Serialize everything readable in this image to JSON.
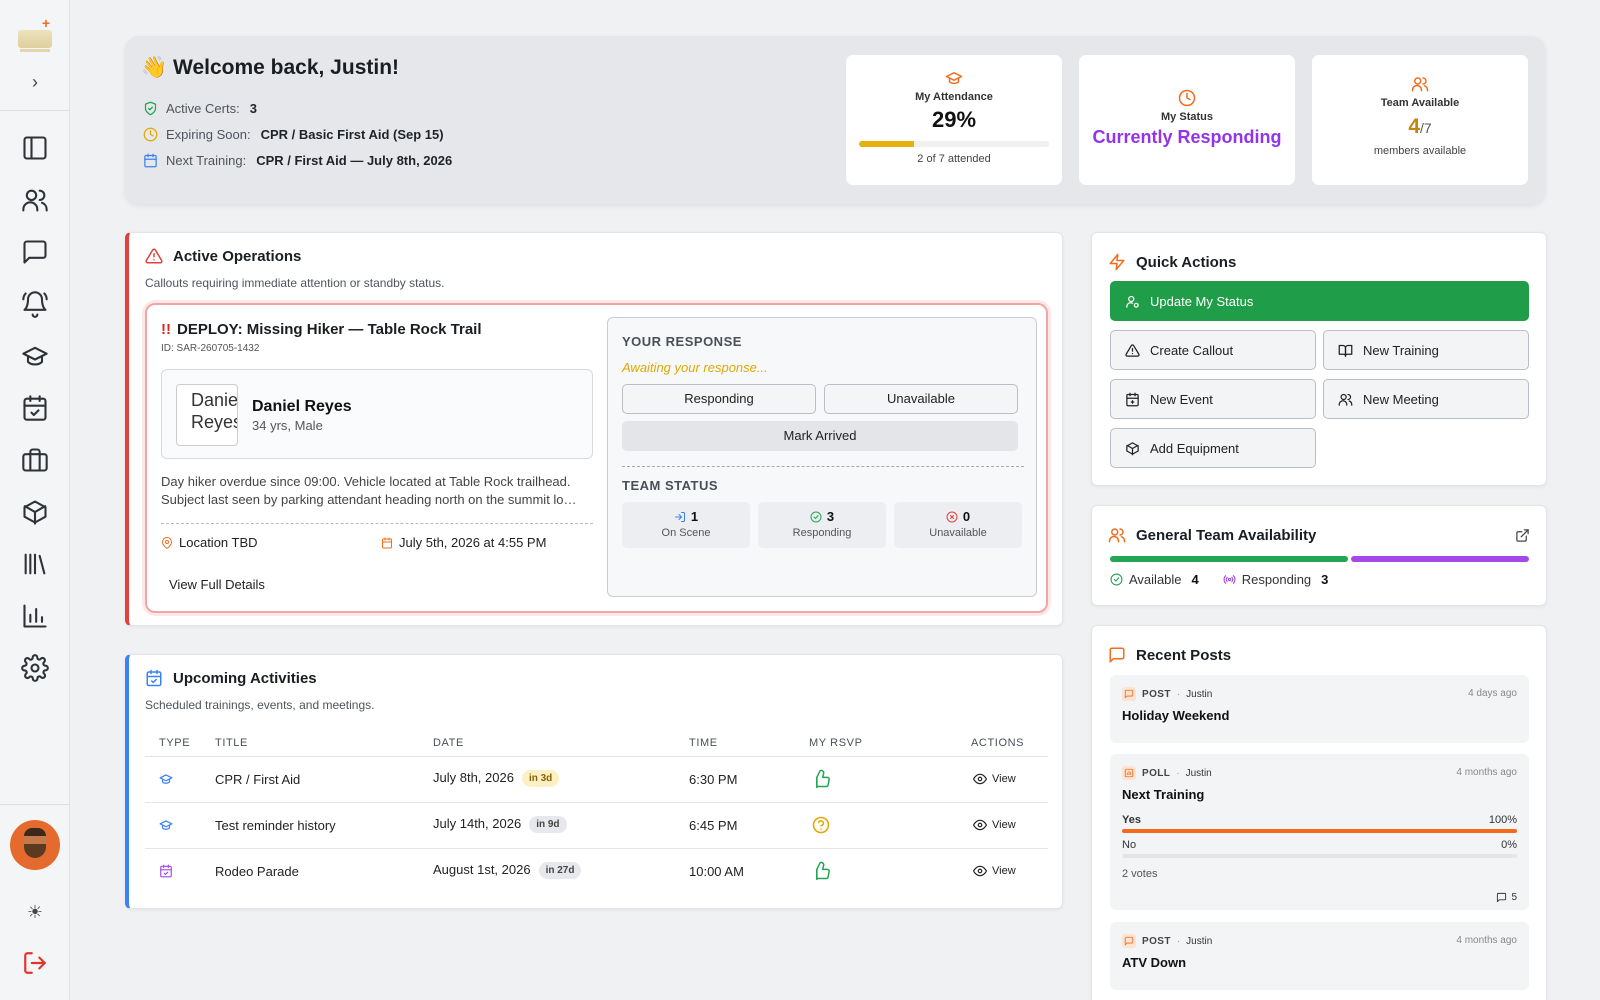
{
  "colors": {
    "accent": "#f26b1d",
    "success": "#1f9d48",
    "responding": "#9333ea",
    "danger": "#e53e3e",
    "info": "#3b82f6"
  },
  "welcome": {
    "emoji": "👋",
    "title": "Welcome back, Justin!",
    "active_certs_label": "Active Certs:",
    "active_certs_value": "3",
    "expiring_label": "Expiring Soon:",
    "expiring_value": "CPR / Basic First Aid (Sep 15)",
    "next_training_label": "Next Training:",
    "next_training_value": "CPR / First Aid — July 8th, 2026"
  },
  "stats": {
    "attendance": {
      "label": "My Attendance",
      "value": "29%",
      "progress": 0.29,
      "sub": "2 of 7 attended"
    },
    "status": {
      "label": "My Status",
      "value": "Currently Responding"
    },
    "team": {
      "label": "Team Available",
      "available": "4",
      "total": "/7",
      "sub": "members available"
    }
  },
  "ops": {
    "title": "Active Operations",
    "desc": "Callouts requiring immediate attention or standby status.",
    "callout": {
      "bang": "!!",
      "title": "DEPLOY: Missing Hiker — Table Rock Trail",
      "id": "ID: SAR-260705-1432",
      "subject_photo_alt": "Daniel Reyes",
      "subject_name": "Daniel Reyes",
      "subject_demo": "34 yrs, Male",
      "description": "Day hiker overdue since 09:00. Vehicle located at Table Rock trailhead. Subject last seen by parking attendant heading north on the summit lo…",
      "location": "Location TBD",
      "datetime": "July 5th, 2026 at 4:55 PM",
      "view_details": "View Full Details"
    },
    "response": {
      "heading": "YOUR RESPONSE",
      "awaiting": "Awaiting your response...",
      "btn_responding": "Responding",
      "btn_unavailable": "Unavailable",
      "btn_arrived": "Mark Arrived",
      "team_heading": "TEAM STATUS",
      "on_scene": {
        "count": "1",
        "label": "On Scene"
      },
      "responding": {
        "count": "3",
        "label": "Responding"
      },
      "unavailable": {
        "count": "0",
        "label": "Unavailable"
      }
    }
  },
  "upcoming": {
    "title": "Upcoming Activities",
    "desc": "Scheduled trainings, events, and meetings.",
    "columns": {
      "type": "TYPE",
      "title": "TITLE",
      "date": "DATE",
      "time": "TIME",
      "rsvp": "MY RSVP",
      "actions": "ACTIONS"
    },
    "rows": [
      {
        "type_icon": "graduation-cap-icon",
        "title": "CPR / First Aid",
        "date": "July 8th, 2026",
        "badge": "in 3d",
        "time": "6:30 PM",
        "rsvp_icon": "thumbs-up-icon",
        "action": "View"
      },
      {
        "type_icon": "graduation-cap-icon",
        "title": "Test reminder history",
        "date": "July 14th, 2026",
        "badge": "in 9d",
        "time": "6:45 PM",
        "rsvp_icon": "question-circle-icon",
        "action": "View"
      },
      {
        "type_icon": "calendar-check-icon",
        "title": "Rodeo Parade",
        "date": "August 1st, 2026",
        "badge": "in 27d",
        "time": "10:00 AM",
        "rsvp_icon": "thumbs-up-icon",
        "action": "View"
      }
    ]
  },
  "quick": {
    "title": "Quick Actions",
    "update_status": "Update My Status",
    "create_callout": "Create Callout",
    "new_training": "New Training",
    "new_event": "New Event",
    "new_meeting": "New Meeting",
    "add_equipment": "Add Equipment"
  },
  "availability": {
    "title": "General Team Availability",
    "available_label": "Available",
    "available_count": 4,
    "responding_label": "Responding",
    "responding_count": 3
  },
  "posts": {
    "title": "Recent Posts",
    "items": [
      {
        "type": "POST",
        "author": "Justin",
        "age": "4 days ago",
        "title": "Holiday Weekend"
      },
      {
        "type": "POLL",
        "author": "Justin",
        "age": "4 months ago",
        "title": "Next Training",
        "options": [
          {
            "label": "Yes",
            "pct": "100%",
            "fraction": 1.0
          },
          {
            "label": "No",
            "pct": "0%",
            "fraction": 0.0
          }
        ],
        "votes": "2 votes",
        "comments": "5"
      },
      {
        "type": "POST",
        "author": "Justin",
        "age": "4 months ago",
        "title": "ATV Down"
      }
    ]
  }
}
